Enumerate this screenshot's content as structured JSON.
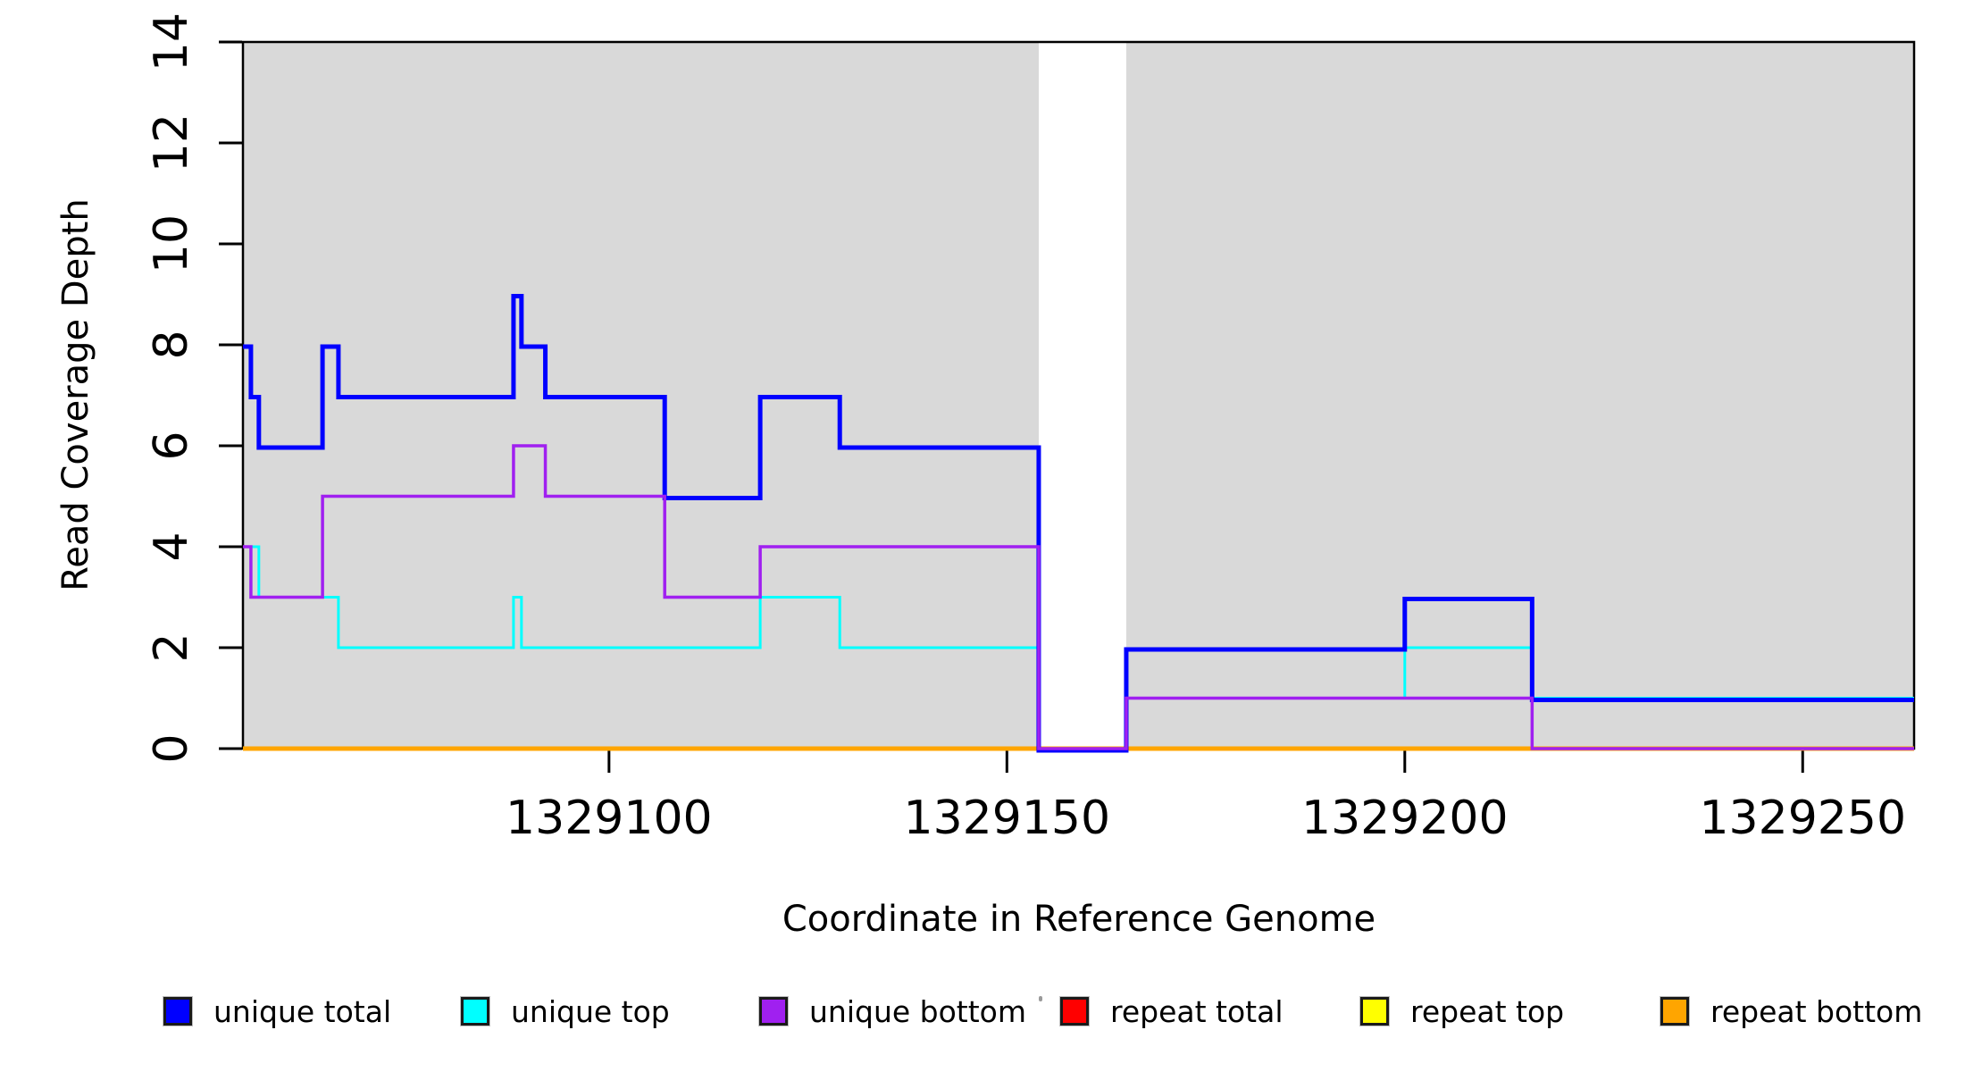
{
  "figure": {
    "background": "#FFFFFF",
    "frame_color": "#000000",
    "shaded_color": "#D9D9D9"
  },
  "chart_data": {
    "type": "line",
    "subtype": "step-coverage",
    "title": "",
    "xlabel": "Coordinate in Reference Genome",
    "ylabel": "Read Coverage Depth",
    "xlim": [
      1329054,
      1329264
    ],
    "ylim": [
      0,
      14
    ],
    "grid": false,
    "legend_position": "bottom",
    "x_ticks": [
      1329100,
      1329150,
      1329200,
      1329250
    ],
    "x_tick_labels": [
      "1329100",
      "1329150",
      "1329200",
      "1329250"
    ],
    "y_ticks": [
      0,
      2,
      4,
      6,
      8,
      10,
      12,
      14
    ],
    "y_tick_labels": [
      "0",
      "2",
      "4",
      "6",
      "8",
      "10",
      "12",
      "14"
    ],
    "x_breaks": [
      1329054,
      1329055,
      1329056,
      1329064,
      1329066,
      1329088,
      1329089,
      1329092,
      1329107,
      1329119,
      1329129,
      1329154,
      1329165,
      1329200,
      1329216
    ],
    "x_end": 1329264,
    "series": [
      {
        "name": "unique total",
        "color": "#0000FF",
        "values": [
          8,
          7,
          6,
          8,
          7,
          9,
          8,
          7,
          5,
          7,
          6,
          0,
          2,
          3,
          1
        ]
      },
      {
        "name": "unique top",
        "color": "#00FFFF",
        "values": [
          4,
          4,
          3,
          3,
          2,
          3,
          2,
          2,
          2,
          3,
          2,
          0,
          1,
          2,
          1
        ]
      },
      {
        "name": "unique bottom",
        "color": "#A020F0",
        "values": [
          4,
          3,
          3,
          5,
          5,
          6,
          6,
          5,
          3,
          4,
          4,
          0,
          1,
          1,
          0
        ]
      },
      {
        "name": "repeat total",
        "color": "#FF0000",
        "values": [
          0,
          0,
          0,
          0,
          0,
          0,
          0,
          0,
          0,
          0,
          0,
          0,
          0,
          0,
          0
        ]
      },
      {
        "name": "repeat top",
        "color": "#FFFF00",
        "values": [
          0,
          0,
          0,
          0,
          0,
          0,
          0,
          0,
          0,
          0,
          0,
          0,
          0,
          0,
          0
        ]
      },
      {
        "name": "repeat bottom",
        "color": "#FFA500",
        "values": [
          0,
          0,
          0,
          0,
          0,
          0,
          0,
          0,
          0,
          0,
          0,
          0,
          0,
          0,
          0
        ]
      }
    ],
    "shaded_regions": [
      {
        "x0": 1329054,
        "x1": 1329154
      },
      {
        "x0": 1329165,
        "x1": 1329264
      }
    ]
  },
  "legend": {
    "items": [
      {
        "label": "unique total",
        "color": "#0000FF"
      },
      {
        "label": "unique top",
        "color": "#00FFFF"
      },
      {
        "label": "unique bottom",
        "color": "#A020F0"
      },
      {
        "label": "repeat total",
        "color": "#FF0000"
      },
      {
        "label": "repeat top",
        "color": "#FFFF00"
      },
      {
        "label": "repeat bottom",
        "color": "#FFA500"
      }
    ]
  }
}
